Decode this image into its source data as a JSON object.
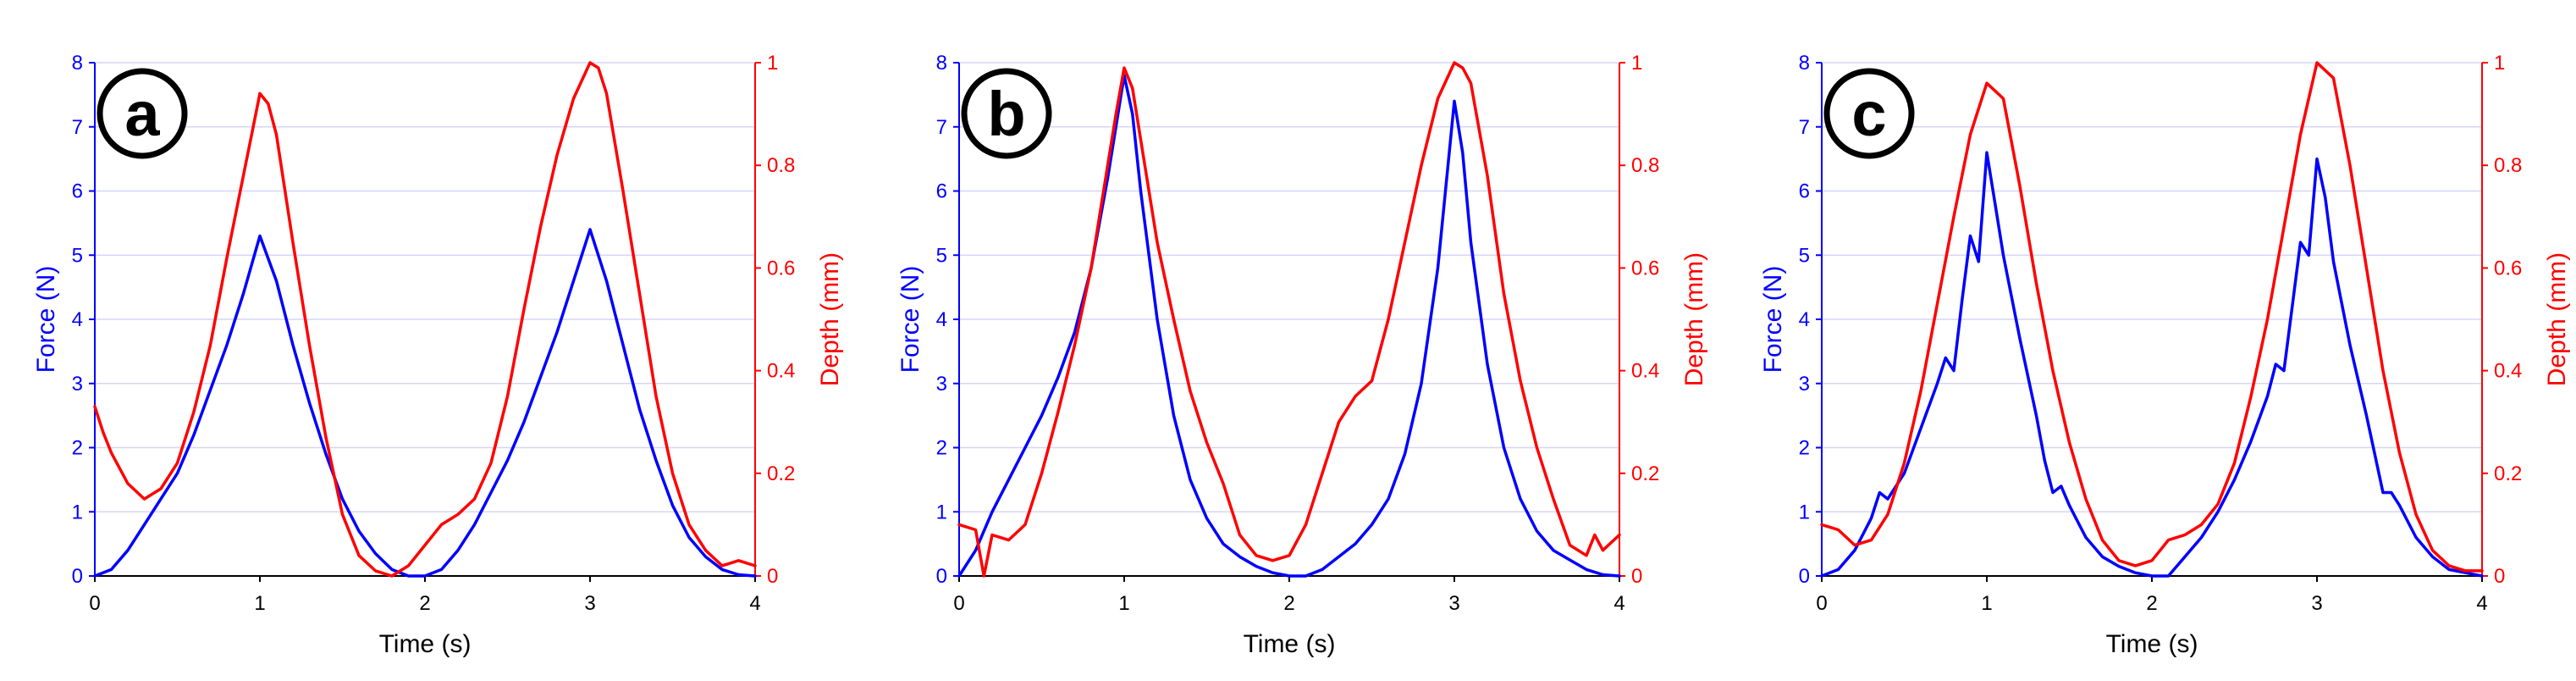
{
  "colors": {
    "force": "#0000ff",
    "depth": "#ff0000",
    "grid": "#d6d6f5",
    "axis": "#000000"
  },
  "chart_data": [
    {
      "type": "line",
      "panel_label": "a",
      "xlabel": "Time (s)",
      "ylabel": "Force (N)",
      "y2label": "Depth (mm)",
      "xlim": [
        0,
        4
      ],
      "ylim": [
        0,
        8
      ],
      "y2lim": [
        0,
        1
      ],
      "xticks": [
        "0",
        "1",
        "2",
        "3",
        "4"
      ],
      "yticks": [
        "0",
        "1",
        "2",
        "3",
        "4",
        "5",
        "6",
        "7",
        "8"
      ],
      "y2ticks": [
        "0",
        "0.2",
        "0.4",
        "0.6",
        "0.8",
        "1"
      ],
      "grid": true,
      "series": [
        {
          "name": "Force",
          "axis": "left",
          "x": [
            0,
            0.1,
            0.2,
            0.3,
            0.4,
            0.5,
            0.6,
            0.7,
            0.8,
            0.9,
            1.0,
            1.1,
            1.2,
            1.3,
            1.4,
            1.5,
            1.6,
            1.7,
            1.8,
            1.9,
            2.0,
            2.1,
            2.2,
            2.3,
            2.4,
            2.5,
            2.6,
            2.7,
            2.8,
            2.9,
            3.0,
            3.1,
            3.2,
            3.3,
            3.4,
            3.5,
            3.6,
            3.7,
            3.8,
            3.9,
            4.0
          ],
          "values": [
            0,
            0.1,
            0.4,
            0.8,
            1.2,
            1.6,
            2.2,
            2.9,
            3.6,
            4.4,
            5.3,
            4.6,
            3.6,
            2.7,
            1.9,
            1.2,
            0.7,
            0.35,
            0.1,
            0.0,
            0.0,
            0.1,
            0.4,
            0.8,
            1.3,
            1.8,
            2.4,
            3.1,
            3.8,
            4.6,
            5.4,
            4.6,
            3.6,
            2.6,
            1.8,
            1.1,
            0.6,
            0.3,
            0.1,
            0.02,
            0
          ]
        },
        {
          "name": "Depth",
          "axis": "right",
          "x": [
            0,
            0.05,
            0.1,
            0.2,
            0.3,
            0.4,
            0.5,
            0.6,
            0.7,
            0.8,
            0.9,
            0.95,
            1.0,
            1.05,
            1.1,
            1.2,
            1.3,
            1.4,
            1.5,
            1.6,
            1.7,
            1.8,
            1.9,
            2.0,
            2.1,
            2.2,
            2.3,
            2.4,
            2.5,
            2.6,
            2.7,
            2.8,
            2.9,
            3.0,
            3.05,
            3.1,
            3.2,
            3.3,
            3.4,
            3.5,
            3.6,
            3.7,
            3.8,
            3.9,
            4.0
          ],
          "values": [
            0.33,
            0.28,
            0.24,
            0.18,
            0.15,
            0.17,
            0.22,
            0.32,
            0.45,
            0.62,
            0.78,
            0.86,
            0.94,
            0.92,
            0.86,
            0.65,
            0.45,
            0.27,
            0.12,
            0.04,
            0.01,
            0.0,
            0.02,
            0.06,
            0.1,
            0.12,
            0.15,
            0.22,
            0.35,
            0.52,
            0.68,
            0.82,
            0.93,
            1.0,
            0.99,
            0.94,
            0.75,
            0.55,
            0.35,
            0.2,
            0.1,
            0.05,
            0.02,
            0.03,
            0.02
          ]
        }
      ]
    },
    {
      "type": "line",
      "panel_label": "b",
      "xlabel": "Time (s)",
      "ylabel": "Force (N)",
      "y2label": "Depth (mm)",
      "xlim": [
        0,
        4
      ],
      "ylim": [
        0,
        8
      ],
      "y2lim": [
        0,
        1
      ],
      "xticks": [
        "0",
        "1",
        "2",
        "3",
        "4"
      ],
      "yticks": [
        "0",
        "1",
        "2",
        "3",
        "4",
        "5",
        "6",
        "7",
        "8"
      ],
      "y2ticks": [
        "0",
        "0.2",
        "0.4",
        "0.6",
        "0.8",
        "1"
      ],
      "grid": true,
      "series": [
        {
          "name": "Force",
          "axis": "left",
          "x": [
            0,
            0.1,
            0.2,
            0.3,
            0.4,
            0.5,
            0.6,
            0.7,
            0.8,
            0.9,
            1.0,
            1.05,
            1.1,
            1.2,
            1.3,
            1.4,
            1.5,
            1.6,
            1.7,
            1.8,
            1.9,
            2.0,
            2.1,
            2.2,
            2.3,
            2.4,
            2.5,
            2.6,
            2.7,
            2.8,
            2.9,
            3.0,
            3.05,
            3.1,
            3.2,
            3.3,
            3.4,
            3.5,
            3.6,
            3.7,
            3.8,
            3.9,
            4.0
          ],
          "values": [
            0,
            0.4,
            1.0,
            1.5,
            2.0,
            2.5,
            3.1,
            3.8,
            4.8,
            6.2,
            7.8,
            7.2,
            6.0,
            4.0,
            2.5,
            1.5,
            0.9,
            0.5,
            0.3,
            0.15,
            0.05,
            0.0,
            0.0,
            0.1,
            0.3,
            0.5,
            0.8,
            1.2,
            1.9,
            3.0,
            4.8,
            7.4,
            6.6,
            5.2,
            3.3,
            2.0,
            1.2,
            0.7,
            0.4,
            0.25,
            0.1,
            0.02,
            0
          ]
        },
        {
          "name": "Depth",
          "axis": "right",
          "x": [
            0,
            0.1,
            0.15,
            0.2,
            0.3,
            0.4,
            0.5,
            0.6,
            0.7,
            0.8,
            0.9,
            0.95,
            1.0,
            1.05,
            1.1,
            1.2,
            1.3,
            1.4,
            1.5,
            1.6,
            1.7,
            1.8,
            1.9,
            2.0,
            2.1,
            2.2,
            2.3,
            2.4,
            2.5,
            2.6,
            2.7,
            2.8,
            2.9,
            3.0,
            3.05,
            3.1,
            3.2,
            3.3,
            3.4,
            3.5,
            3.6,
            3.7,
            3.8,
            3.85,
            3.9,
            4.0
          ],
          "values": [
            0.1,
            0.09,
            0.0,
            0.08,
            0.07,
            0.1,
            0.2,
            0.32,
            0.45,
            0.6,
            0.8,
            0.9,
            0.99,
            0.95,
            0.85,
            0.65,
            0.5,
            0.36,
            0.26,
            0.18,
            0.08,
            0.04,
            0.03,
            0.04,
            0.1,
            0.2,
            0.3,
            0.35,
            0.38,
            0.5,
            0.65,
            0.8,
            0.93,
            1.0,
            0.99,
            0.96,
            0.78,
            0.55,
            0.38,
            0.25,
            0.15,
            0.06,
            0.04,
            0.08,
            0.05,
            0.08
          ]
        }
      ]
    },
    {
      "type": "line",
      "panel_label": "c",
      "xlabel": "Time (s)",
      "ylabel": "Force (N)",
      "y2label": "Depth (mm)",
      "xlim": [
        0,
        4
      ],
      "ylim": [
        0,
        8
      ],
      "y2lim": [
        0,
        1
      ],
      "xticks": [
        "0",
        "1",
        "2",
        "3",
        "4"
      ],
      "yticks": [
        "0",
        "1",
        "2",
        "3",
        "4",
        "5",
        "6",
        "7",
        "8"
      ],
      "y2ticks": [
        "0",
        "0.2",
        "0.4",
        "0.6",
        "0.8",
        "1"
      ],
      "grid": true,
      "series": [
        {
          "name": "Force",
          "axis": "left",
          "x": [
            0,
            0.1,
            0.2,
            0.3,
            0.35,
            0.4,
            0.5,
            0.6,
            0.7,
            0.75,
            0.8,
            0.85,
            0.9,
            0.95,
            1.0,
            1.05,
            1.1,
            1.2,
            1.3,
            1.35,
            1.4,
            1.45,
            1.5,
            1.6,
            1.7,
            1.8,
            1.9,
            2.0,
            2.1,
            2.2,
            2.3,
            2.4,
            2.5,
            2.6,
            2.7,
            2.75,
            2.8,
            2.85,
            2.9,
            2.95,
            3.0,
            3.05,
            3.1,
            3.2,
            3.3,
            3.4,
            3.45,
            3.5,
            3.6,
            3.7,
            3.8,
            3.9,
            4.0
          ],
          "values": [
            0,
            0.1,
            0.4,
            0.9,
            1.3,
            1.2,
            1.6,
            2.3,
            3.0,
            3.4,
            3.2,
            4.3,
            5.3,
            4.9,
            6.6,
            5.8,
            5.0,
            3.7,
            2.5,
            1.8,
            1.3,
            1.4,
            1.1,
            0.6,
            0.3,
            0.15,
            0.05,
            0.0,
            0.0,
            0.3,
            0.6,
            1.0,
            1.5,
            2.1,
            2.8,
            3.3,
            3.2,
            4.2,
            5.2,
            5.0,
            6.5,
            5.9,
            4.9,
            3.6,
            2.5,
            1.3,
            1.3,
            1.1,
            0.6,
            0.3,
            0.1,
            0.05,
            0
          ]
        },
        {
          "name": "Depth",
          "axis": "right",
          "x": [
            0,
            0.1,
            0.2,
            0.3,
            0.4,
            0.5,
            0.6,
            0.7,
            0.8,
            0.9,
            1.0,
            1.1,
            1.2,
            1.3,
            1.4,
            1.5,
            1.6,
            1.7,
            1.8,
            1.9,
            2.0,
            2.1,
            2.2,
            2.3,
            2.4,
            2.5,
            2.6,
            2.7,
            2.8,
            2.9,
            3.0,
            3.1,
            3.2,
            3.3,
            3.4,
            3.5,
            3.6,
            3.7,
            3.8,
            3.9,
            4.0
          ],
          "values": [
            0.1,
            0.09,
            0.06,
            0.07,
            0.12,
            0.22,
            0.36,
            0.53,
            0.7,
            0.86,
            0.96,
            0.93,
            0.76,
            0.57,
            0.4,
            0.26,
            0.15,
            0.07,
            0.03,
            0.02,
            0.03,
            0.07,
            0.08,
            0.1,
            0.14,
            0.22,
            0.35,
            0.5,
            0.68,
            0.86,
            1.0,
            0.97,
            0.8,
            0.6,
            0.4,
            0.24,
            0.12,
            0.05,
            0.02,
            0.01,
            0.01
          ]
        }
      ]
    }
  ]
}
